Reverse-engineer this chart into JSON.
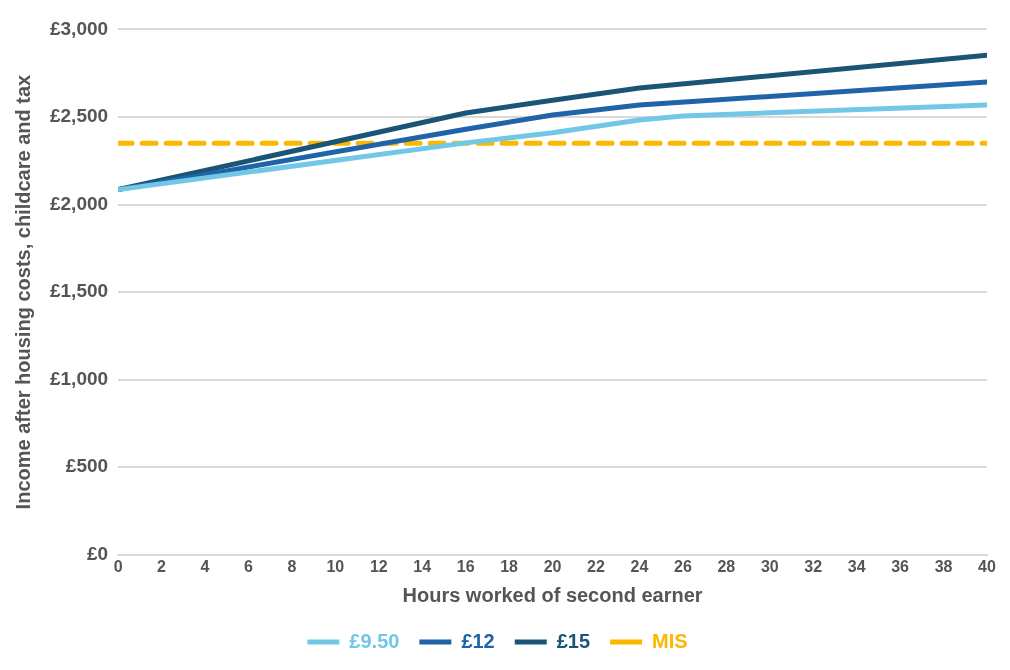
{
  "chart_data": {
    "type": "line",
    "xlabel": "Hours worked of second earner",
    "ylabel": "Income after housing costs, childcare and tax",
    "xlim": [
      0,
      40
    ],
    "xticks": [
      0,
      2,
      4,
      6,
      8,
      10,
      12,
      14,
      16,
      18,
      20,
      22,
      24,
      26,
      28,
      30,
      32,
      34,
      36,
      38,
      40
    ],
    "ylim": [
      0,
      3000
    ],
    "yticks": [
      {
        "value": 0,
        "label": "£0"
      },
      {
        "value": 500,
        "label": "£500"
      },
      {
        "value": 1000,
        "label": "£1,000"
      },
      {
        "value": 1500,
        "label": "£1,500"
      },
      {
        "value": 2000,
        "label": "£2,000"
      },
      {
        "value": 2500,
        "label": "£2,500"
      },
      {
        "value": 3000,
        "label": "£3,000"
      }
    ],
    "grid": "y",
    "legend": "bottom",
    "marker": "none",
    "series": [
      {
        "name": "£9.50",
        "color": "#72c7e7",
        "x": [
          0,
          16,
          20,
          24,
          26,
          40
        ],
        "values": [
          2085,
          2352,
          2410,
          2483,
          2506,
          2568
        ]
      },
      {
        "name": "£12",
        "color": "#1f63a8",
        "x": [
          0,
          16,
          20,
          24,
          40
        ],
        "values": [
          2085,
          2430,
          2511,
          2568,
          2699
        ]
      },
      {
        "name": "£15",
        "color": "#1b5576",
        "x": [
          0,
          16,
          20,
          24,
          40
        ],
        "values": [
          2085,
          2523,
          2595,
          2665,
          2852
        ]
      },
      {
        "name": "MIS",
        "color": "#fbb800",
        "x": [
          0,
          40
        ],
        "values": [
          2350,
          2350
        ],
        "line_style": "dashed"
      }
    ]
  }
}
